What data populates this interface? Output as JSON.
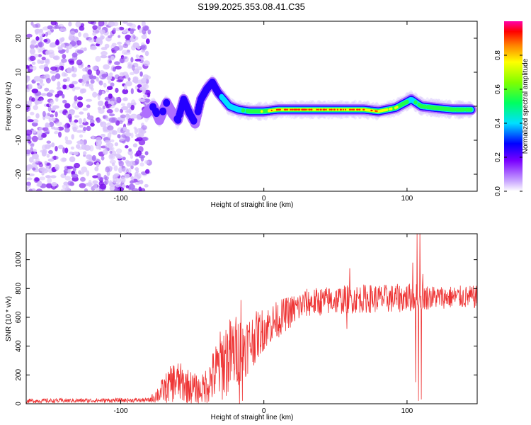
{
  "title": "S199.2025.353.08.41.C35",
  "chart_data": [
    {
      "type": "heatmap",
      "xlabel": "Height of straight line (km)",
      "ylabel": "Frequency (Hz)",
      "xlim": [
        -166,
        149
      ],
      "ylim": [
        -25,
        25
      ],
      "xticks": [
        -100,
        0,
        100
      ],
      "yticks": [
        -20,
        -10,
        0,
        10,
        20
      ],
      "xtick_labels": [
        "-100",
        "0",
        "100"
      ],
      "ytick_labels": [
        "-20",
        "-10",
        "0",
        "10",
        "20"
      ],
      "noise_region_km": [
        -166,
        -80
      ],
      "ridge": [
        {
          "x": -82,
          "y": -2,
          "a": 0.2
        },
        {
          "x": -77,
          "y": 0,
          "a": 0.25
        },
        {
          "x": -73,
          "y": -4,
          "a": 0.2
        },
        {
          "x": -68,
          "y": 1,
          "a": 0.25
        },
        {
          "x": -64,
          "y": -2,
          "a": 0.2
        },
        {
          "x": -60,
          "y": -4,
          "a": 0.25
        },
        {
          "x": -56,
          "y": 2,
          "a": 0.35
        },
        {
          "x": -52,
          "y": -2,
          "a": 0.3
        },
        {
          "x": -48,
          "y": -5,
          "a": 0.25
        },
        {
          "x": -44,
          "y": 2,
          "a": 0.3
        },
        {
          "x": -40,
          "y": 5,
          "a": 0.35
        },
        {
          "x": -36,
          "y": 7,
          "a": 0.3
        },
        {
          "x": -32,
          "y": 4,
          "a": 0.35
        },
        {
          "x": -28,
          "y": 2,
          "a": 0.45
        },
        {
          "x": -24,
          "y": 0,
          "a": 0.5
        },
        {
          "x": -18,
          "y": -1,
          "a": 0.45
        },
        {
          "x": -10,
          "y": -1.5,
          "a": 0.6
        },
        {
          "x": 0,
          "y": -1.5,
          "a": 0.7
        },
        {
          "x": 10,
          "y": -1,
          "a": 0.9
        },
        {
          "x": 25,
          "y": -1,
          "a": 0.95
        },
        {
          "x": 40,
          "y": -1,
          "a": 0.9
        },
        {
          "x": 55,
          "y": -1,
          "a": 0.95
        },
        {
          "x": 70,
          "y": -1,
          "a": 0.9
        },
        {
          "x": 80,
          "y": -1.5,
          "a": 0.8
        },
        {
          "x": 92,
          "y": -0.5,
          "a": 0.7
        },
        {
          "x": 103,
          "y": 2,
          "a": 0.45
        },
        {
          "x": 110,
          "y": 0,
          "a": 0.55
        },
        {
          "x": 120,
          "y": -0.5,
          "a": 0.6
        },
        {
          "x": 132,
          "y": -1,
          "a": 0.6
        },
        {
          "x": 145,
          "y": -1,
          "a": 0.5
        }
      ],
      "colorbar": {
        "label": "Normalized spectral amplitude",
        "range": [
          0,
          1
        ],
        "ticks": [
          0.0,
          0.2,
          0.4,
          0.6,
          0.8
        ],
        "tick_labels": [
          "0.0",
          "0.2",
          "0.4",
          "0.6",
          "0.8"
        ],
        "colormap": "rainbow"
      }
    },
    {
      "type": "line",
      "xlabel": "Height of straight line (km)",
      "ylabel": "SNR (10 * v/v)",
      "xlim": [
        -166,
        149
      ],
      "ylim": [
        0,
        1180
      ],
      "xticks": [
        -100,
        0,
        100
      ],
      "yticks": [
        0,
        200,
        400,
        600,
        800,
        1000
      ],
      "xtick_labels": [
        "-100",
        "0",
        "100"
      ],
      "ytick_labels": [
        "0",
        "200",
        "400",
        "600",
        "800",
        "1000"
      ],
      "color": "#ee3333",
      "envelope": [
        {
          "x": -166,
          "mean": 20,
          "spread": 15
        },
        {
          "x": -80,
          "mean": 25,
          "spread": 15
        },
        {
          "x": -72,
          "mean": 80,
          "spread": 80
        },
        {
          "x": -62,
          "mean": 160,
          "spread": 150
        },
        {
          "x": -52,
          "mean": 120,
          "spread": 120
        },
        {
          "x": -44,
          "mean": 90,
          "spread": 90
        },
        {
          "x": -36,
          "mean": 180,
          "spread": 180
        },
        {
          "x": -28,
          "mean": 300,
          "spread": 280
        },
        {
          "x": -20,
          "mean": 360,
          "spread": 260
        },
        {
          "x": -10,
          "mean": 420,
          "spread": 200
        },
        {
          "x": 0,
          "mean": 520,
          "spread": 150
        },
        {
          "x": 15,
          "mean": 620,
          "spread": 120
        },
        {
          "x": 30,
          "mean": 700,
          "spread": 100
        },
        {
          "x": 50,
          "mean": 720,
          "spread": 100
        },
        {
          "x": 70,
          "mean": 730,
          "spread": 100
        },
        {
          "x": 90,
          "mean": 730,
          "spread": 100
        },
        {
          "x": 105,
          "mean": 740,
          "spread": 100
        },
        {
          "x": 120,
          "mean": 740,
          "spread": 80
        },
        {
          "x": 149,
          "mean": 740,
          "spread": 80
        }
      ],
      "spikes": [
        {
          "x": -17,
          "y": 0
        },
        {
          "x": -16,
          "y": 720
        },
        {
          "x": -15,
          "y": 20
        },
        {
          "x": 58,
          "y": 520
        },
        {
          "x": 60,
          "y": 940
        },
        {
          "x": 104,
          "y": 980
        },
        {
          "x": 106,
          "y": 150
        },
        {
          "x": 107,
          "y": 1180
        },
        {
          "x": 108,
          "y": 20
        },
        {
          "x": 109,
          "y": 1180
        },
        {
          "x": 110,
          "y": 30
        },
        {
          "x": 111,
          "y": 900
        }
      ]
    }
  ]
}
